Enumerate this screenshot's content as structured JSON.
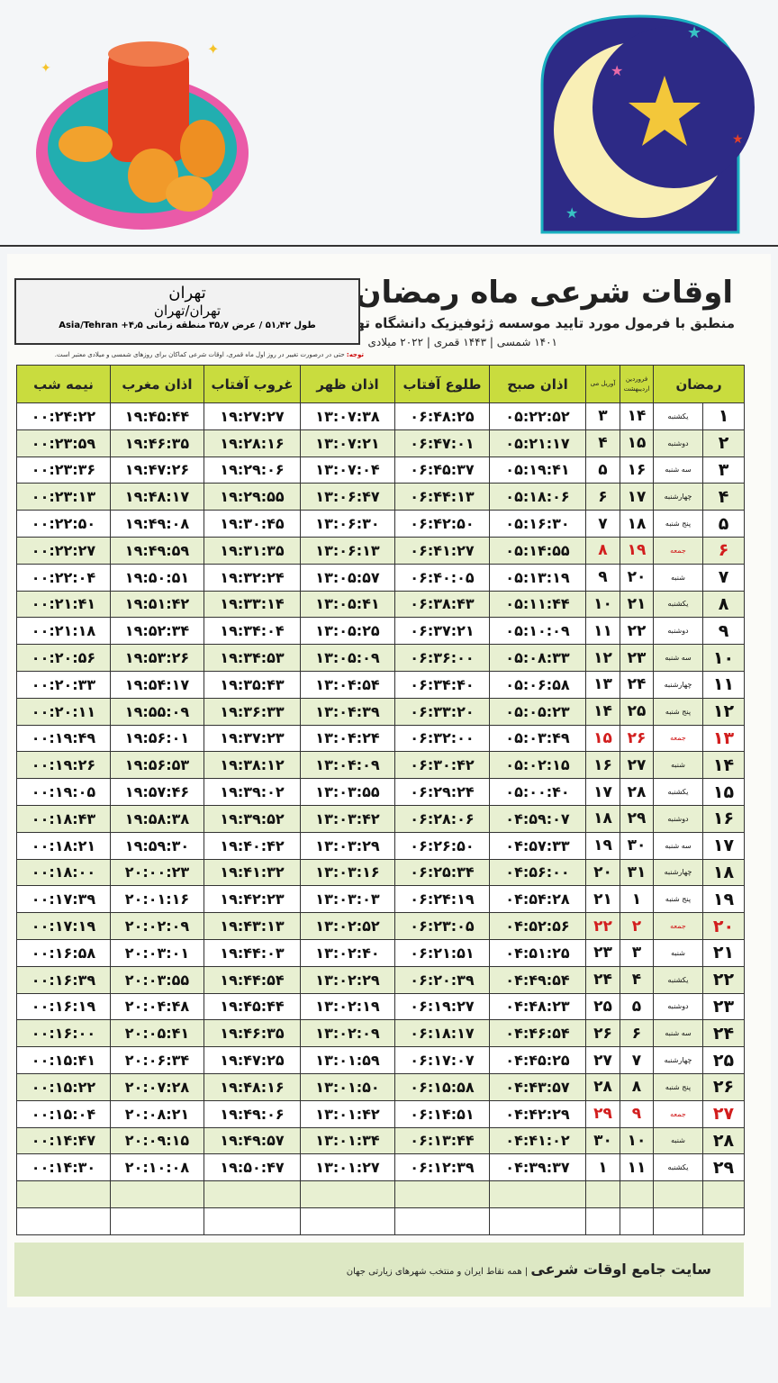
{
  "header": {
    "title": "اوقات شرعی ماه رمضان",
    "subtitle": "منطبق با فرمول مورد تایید موسسه ژئوفیزیک دانشگاه تهران",
    "years": "۱۴۰۱ شمسی | ۱۴۴۳ قمری | ۲۰۲۲ میلادی"
  },
  "location": {
    "city": "تهران",
    "region": "تهران/تهران",
    "coords": "طول ۵۱٫۴۲ / عرض ۳۵٫۷ منطقه زمانی ۴٫۵+ Asia/Tehran"
  },
  "note": {
    "label": "توجه:",
    "text": "حتی در درصورت تغییر در روز اول ماه قمری، اوقات شرعی کماکان برای روزهای شمسی و میلادی معتبر است."
  },
  "columns": {
    "ramadan": "رمضان",
    "farvardin": "فروردین اردیبهشت",
    "april": "آوریل می",
    "sobh": "اذان صبح",
    "tolu": "طلوع آفتاب",
    "zohr": "اذان ظهر",
    "ghorub": "غروب آفتاب",
    "maghreb": "اذان مغرب",
    "nimeh": "نیمه شب"
  },
  "colors": {
    "header": "#c9dc3e",
    "row_alt": "#e8f0d2",
    "friday": "#d21e1e"
  },
  "rows": [
    [
      "۱",
      "یکشنبه",
      "۱۴",
      "۳",
      "۰۵:۲۲:۵۲",
      "۰۶:۴۸:۲۵",
      "۱۳:۰۷:۳۸",
      "۱۹:۲۷:۲۷",
      "۱۹:۴۵:۴۴",
      "۰۰:۲۴:۲۲"
    ],
    [
      "۲",
      "دوشنبه",
      "۱۵",
      "۴",
      "۰۵:۲۱:۱۷",
      "۰۶:۴۷:۰۱",
      "۱۳:۰۷:۲۱",
      "۱۹:۲۸:۱۶",
      "۱۹:۴۶:۳۵",
      "۰۰:۲۳:۵۹"
    ],
    [
      "۳",
      "سه شنبه",
      "۱۶",
      "۵",
      "۰۵:۱۹:۴۱",
      "۰۶:۴۵:۳۷",
      "۱۳:۰۷:۰۴",
      "۱۹:۲۹:۰۶",
      "۱۹:۴۷:۲۶",
      "۰۰:۲۳:۳۶"
    ],
    [
      "۴",
      "چهارشنبه",
      "۱۷",
      "۶",
      "۰۵:۱۸:۰۶",
      "۰۶:۴۴:۱۳",
      "۱۳:۰۶:۴۷",
      "۱۹:۲۹:۵۵",
      "۱۹:۴۸:۱۷",
      "۰۰:۲۳:۱۳"
    ],
    [
      "۵",
      "پنج شنبه",
      "۱۸",
      "۷",
      "۰۵:۱۶:۳۰",
      "۰۶:۴۲:۵۰",
      "۱۳:۰۶:۳۰",
      "۱۹:۳۰:۴۵",
      "۱۹:۴۹:۰۸",
      "۰۰:۲۲:۵۰"
    ],
    [
      "۶",
      "جمعه",
      "۱۹",
      "۸",
      "۰۵:۱۴:۵۵",
      "۰۶:۴۱:۲۷",
      "۱۳:۰۶:۱۳",
      "۱۹:۳۱:۳۵",
      "۱۹:۴۹:۵۹",
      "۰۰:۲۲:۲۷"
    ],
    [
      "۷",
      "شنبه",
      "۲۰",
      "۹",
      "۰۵:۱۳:۱۹",
      "۰۶:۴۰:۰۵",
      "۱۳:۰۵:۵۷",
      "۱۹:۳۲:۲۴",
      "۱۹:۵۰:۵۱",
      "۰۰:۲۲:۰۴"
    ],
    [
      "۸",
      "یکشنبه",
      "۲۱",
      "۱۰",
      "۰۵:۱۱:۴۴",
      "۰۶:۳۸:۴۳",
      "۱۳:۰۵:۴۱",
      "۱۹:۳۳:۱۴",
      "۱۹:۵۱:۴۲",
      "۰۰:۲۱:۴۱"
    ],
    [
      "۹",
      "دوشنبه",
      "۲۲",
      "۱۱",
      "۰۵:۱۰:۰۹",
      "۰۶:۳۷:۲۱",
      "۱۳:۰۵:۲۵",
      "۱۹:۳۴:۰۴",
      "۱۹:۵۲:۳۴",
      "۰۰:۲۱:۱۸"
    ],
    [
      "۱۰",
      "سه شنبه",
      "۲۳",
      "۱۲",
      "۰۵:۰۸:۳۳",
      "۰۶:۳۶:۰۰",
      "۱۳:۰۵:۰۹",
      "۱۹:۳۴:۵۳",
      "۱۹:۵۳:۲۶",
      "۰۰:۲۰:۵۶"
    ],
    [
      "۱۱",
      "چهارشنبه",
      "۲۴",
      "۱۳",
      "۰۵:۰۶:۵۸",
      "۰۶:۳۴:۴۰",
      "۱۳:۰۴:۵۴",
      "۱۹:۳۵:۴۳",
      "۱۹:۵۴:۱۷",
      "۰۰:۲۰:۳۳"
    ],
    [
      "۱۲",
      "پنج شنبه",
      "۲۵",
      "۱۴",
      "۰۵:۰۵:۲۳",
      "۰۶:۳۳:۲۰",
      "۱۳:۰۴:۳۹",
      "۱۹:۳۶:۳۳",
      "۱۹:۵۵:۰۹",
      "۰۰:۲۰:۱۱"
    ],
    [
      "۱۳",
      "جمعه",
      "۲۶",
      "۱۵",
      "۰۵:۰۳:۴۹",
      "۰۶:۳۲:۰۰",
      "۱۳:۰۴:۲۴",
      "۱۹:۳۷:۲۳",
      "۱۹:۵۶:۰۱",
      "۰۰:۱۹:۴۹"
    ],
    [
      "۱۴",
      "شنبه",
      "۲۷",
      "۱۶",
      "۰۵:۰۲:۱۵",
      "۰۶:۳۰:۴۲",
      "۱۳:۰۴:۰۹",
      "۱۹:۳۸:۱۲",
      "۱۹:۵۶:۵۳",
      "۰۰:۱۹:۲۶"
    ],
    [
      "۱۵",
      "یکشنبه",
      "۲۸",
      "۱۷",
      "۰۵:۰۰:۴۰",
      "۰۶:۲۹:۲۴",
      "۱۳:۰۳:۵۵",
      "۱۹:۳۹:۰۲",
      "۱۹:۵۷:۴۶",
      "۰۰:۱۹:۰۵"
    ],
    [
      "۱۶",
      "دوشنبه",
      "۲۹",
      "۱۸",
      "۰۴:۵۹:۰۷",
      "۰۶:۲۸:۰۶",
      "۱۳:۰۳:۴۲",
      "۱۹:۳۹:۵۲",
      "۱۹:۵۸:۳۸",
      "۰۰:۱۸:۴۳"
    ],
    [
      "۱۷",
      "سه شنبه",
      "۳۰",
      "۱۹",
      "۰۴:۵۷:۳۳",
      "۰۶:۲۶:۵۰",
      "۱۳:۰۳:۲۹",
      "۱۹:۴۰:۴۲",
      "۱۹:۵۹:۳۰",
      "۰۰:۱۸:۲۱"
    ],
    [
      "۱۸",
      "چهارشنبه",
      "۳۱",
      "۲۰",
      "۰۴:۵۶:۰۰",
      "۰۶:۲۵:۳۴",
      "۱۳:۰۳:۱۶",
      "۱۹:۴۱:۳۲",
      "۲۰:۰۰:۲۳",
      "۰۰:۱۸:۰۰"
    ],
    [
      "۱۹",
      "پنج شنبه",
      "۱",
      "۲۱",
      "۰۴:۵۴:۲۸",
      "۰۶:۲۴:۱۹",
      "۱۳:۰۳:۰۳",
      "۱۹:۴۲:۲۳",
      "۲۰:۰۱:۱۶",
      "۰۰:۱۷:۳۹"
    ],
    [
      "۲۰",
      "جمعه",
      "۲",
      "۲۲",
      "۰۴:۵۲:۵۶",
      "۰۶:۲۳:۰۵",
      "۱۳:۰۲:۵۲",
      "۱۹:۴۳:۱۳",
      "۲۰:۰۲:۰۹",
      "۰۰:۱۷:۱۹"
    ],
    [
      "۲۱",
      "شنبه",
      "۳",
      "۲۳",
      "۰۴:۵۱:۲۵",
      "۰۶:۲۱:۵۱",
      "۱۳:۰۲:۴۰",
      "۱۹:۴۴:۰۳",
      "۲۰:۰۳:۰۱",
      "۰۰:۱۶:۵۸"
    ],
    [
      "۲۲",
      "یکشنبه",
      "۴",
      "۲۴",
      "۰۴:۴۹:۵۴",
      "۰۶:۲۰:۳۹",
      "۱۳:۰۲:۲۹",
      "۱۹:۴۴:۵۴",
      "۲۰:۰۳:۵۵",
      "۰۰:۱۶:۳۹"
    ],
    [
      "۲۳",
      "دوشنبه",
      "۵",
      "۲۵",
      "۰۴:۴۸:۲۳",
      "۰۶:۱۹:۲۷",
      "۱۳:۰۲:۱۹",
      "۱۹:۴۵:۴۴",
      "۲۰:۰۴:۴۸",
      "۰۰:۱۶:۱۹"
    ],
    [
      "۲۴",
      "سه شنبه",
      "۶",
      "۲۶",
      "۰۴:۴۶:۵۴",
      "۰۶:۱۸:۱۷",
      "۱۳:۰۲:۰۹",
      "۱۹:۴۶:۳۵",
      "۲۰:۰۵:۴۱",
      "۰۰:۱۶:۰۰"
    ],
    [
      "۲۵",
      "چهارشنبه",
      "۷",
      "۲۷",
      "۰۴:۴۵:۲۵",
      "۰۶:۱۷:۰۷",
      "۱۳:۰۱:۵۹",
      "۱۹:۴۷:۲۵",
      "۲۰:۰۶:۳۴",
      "۰۰:۱۵:۴۱"
    ],
    [
      "۲۶",
      "پنج شنبه",
      "۸",
      "۲۸",
      "۰۴:۴۳:۵۷",
      "۰۶:۱۵:۵۸",
      "۱۳:۰۱:۵۰",
      "۱۹:۴۸:۱۶",
      "۲۰:۰۷:۲۸",
      "۰۰:۱۵:۲۲"
    ],
    [
      "۲۷",
      "جمعه",
      "۹",
      "۲۹",
      "۰۴:۴۲:۲۹",
      "۰۶:۱۴:۵۱",
      "۱۳:۰۱:۴۲",
      "۱۹:۴۹:۰۶",
      "۲۰:۰۸:۲۱",
      "۰۰:۱۵:۰۴"
    ],
    [
      "۲۸",
      "شنبه",
      "۱۰",
      "۳۰",
      "۰۴:۴۱:۰۲",
      "۰۶:۱۳:۴۴",
      "۱۳:۰۱:۳۴",
      "۱۹:۴۹:۵۷",
      "۲۰:۰۹:۱۵",
      "۰۰:۱۴:۴۷"
    ],
    [
      "۲۹",
      "یکشنبه",
      "۱۱",
      "۱",
      "۰۴:۳۹:۳۷",
      "۰۶:۱۲:۳۹",
      "۱۳:۰۱:۲۷",
      "۱۹:۵۰:۴۷",
      "۲۰:۱۰:۰۸",
      "۰۰:۱۴:۳۰"
    ]
  ],
  "friday_rows": [
    6,
    13,
    20,
    27
  ],
  "footer": {
    "brand": "سایت جامع اوقات شرعی",
    "tagline": "| همه نقاط ایران و منتخب شهرهای زیارتی جهان"
  }
}
